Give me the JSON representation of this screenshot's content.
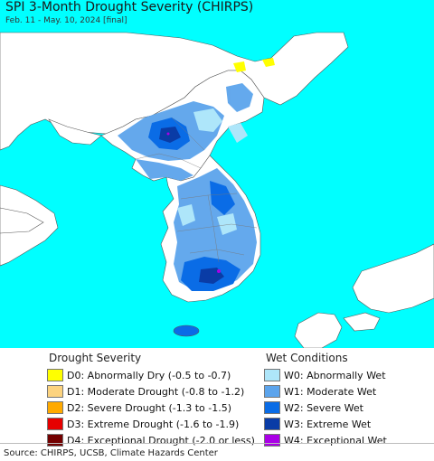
{
  "title": "SPI 3-Month Drought Severity (CHIRPS)",
  "subtitle": "Feb. 11 - May. 10, 2024 [final]",
  "colors": {
    "ocean": "#00ffff",
    "land": "#ffffff",
    "border": "#555555"
  },
  "legend_drought": {
    "heading": "Drought Severity",
    "items": [
      {
        "label": "D0: Abnormally Dry (-0.5 to -0.7)",
        "color": "#ffff00"
      },
      {
        "label": "D1: Moderate Drought (-0.8 to -1.2)",
        "color": "#fcd37f"
      },
      {
        "label": "D2: Severe Drought (-1.3 to -1.5)",
        "color": "#ffaa00"
      },
      {
        "label": "D3: Extreme Drought (-1.6 to -1.9)",
        "color": "#e60000"
      },
      {
        "label": "D4: Exceptional Drought (-2.0 or less)",
        "color": "#730000"
      }
    ]
  },
  "legend_wet": {
    "heading": "Wet Conditions",
    "items": [
      {
        "label": "W0: Abnormally Wet",
        "color": "#aee6fa"
      },
      {
        "label": "W1: Moderate Wet",
        "color": "#5ca4ec"
      },
      {
        "label": "W2: Severe Wet",
        "color": "#0a6ce6"
      },
      {
        "label": "W3: Extreme Wet",
        "color": "#0a3ca6"
      },
      {
        "label": "W4: Exceptional Wet",
        "color": "#aa00e6"
      }
    ]
  },
  "source": "Source: CHIRPS, UCSB, Climate Hazards Center"
}
